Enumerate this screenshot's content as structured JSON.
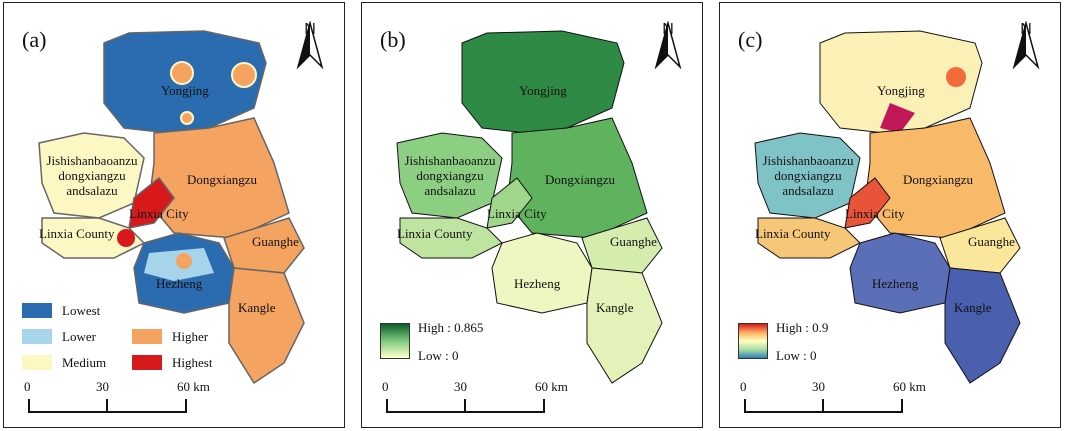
{
  "panels": [
    {
      "id": "a",
      "label": "(a)",
      "north_label": "N",
      "places": {
        "yongjing": "Yongjing",
        "jishi_line1": "Jishishanbaoanzu",
        "jishi_line2": "dongxiangzu",
        "jishi_line3": "andsalazu",
        "dongxiangzu": "Dongxiangzu",
        "linxia_city": "Linxia City",
        "linxia_county": "Linxia County",
        "guanghe": "Guanghe",
        "hezheng": "Hezheng",
        "kangle": "Kangle"
      },
      "legend": [
        {
          "label": "Lowest",
          "color": "#2b6cb0"
        },
        {
          "label": "Lower",
          "color": "#a6d4ea"
        },
        {
          "label": "Higher",
          "color": "#f4a460"
        },
        {
          "label": "Medium",
          "color": "#fdf7c3"
        },
        {
          "label": "Highest",
          "color": "#d7191c"
        }
      ],
      "scale": {
        "ticks": [
          "0",
          "30",
          "60 km"
        ]
      }
    },
    {
      "id": "b",
      "label": "(b)",
      "north_label": "N",
      "places": {
        "yongjing": "Yongjing",
        "jishi_line1": "Jishishanbaoanzu",
        "jishi_line2": "dongxiangzu",
        "jishi_line3": "andsalazu",
        "dongxiangzu": "Dongxiangzu",
        "linxia_city": "Linxia City",
        "linxia_county": "Linxia County",
        "guanghe": "Guanghe",
        "hezheng": "Hezheng",
        "kangle": "Kangle"
      },
      "gradient": {
        "high": "High : 0.865",
        "low": "Low : 0",
        "colors": [
          "#0b5e2a",
          "#7fc97f",
          "#ffffcc"
        ]
      },
      "scale": {
        "ticks": [
          "0",
          "30",
          "60 km"
        ]
      }
    },
    {
      "id": "c",
      "label": "(c)",
      "north_label": "N",
      "places": {
        "yongjing": "Yongjing",
        "jishi_line1": "Jishishanbaoanzu",
        "jishi_line2": "dongxiangzu",
        "jishi_line3": "andsalazu",
        "dongxiangzu": "Dongxiangzu",
        "linxia_city": "Linxia City",
        "linxia_county": "Linxia County",
        "guanghe": "Guanghe",
        "hezheng": "Hezheng",
        "kangle": "Kangle"
      },
      "gradient": {
        "high": "High : 0.9",
        "low": "Low : 0",
        "colors": [
          "#d7191c",
          "#fdae61",
          "#ffffbf",
          "#abdda4",
          "#2b83ba"
        ]
      },
      "scale": {
        "ticks": [
          "0",
          "30",
          "60 km"
        ]
      }
    }
  ],
  "colors": {
    "boundary": "#555555",
    "lowest": "#2b6cb0",
    "lower": "#a6d4ea",
    "medium": "#fdf7c3",
    "higher": "#f4a460",
    "highest": "#d7191c"
  }
}
